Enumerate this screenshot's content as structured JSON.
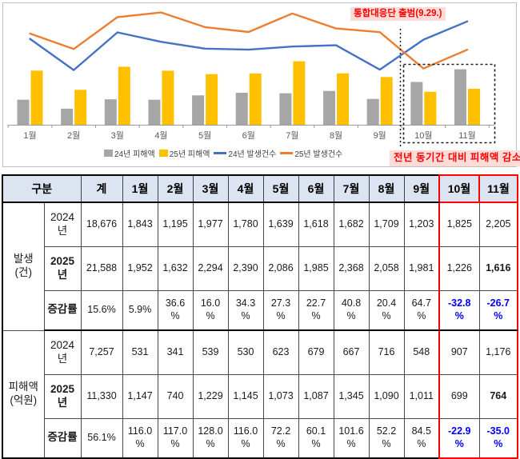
{
  "chart_data": {
    "type": "combo",
    "title": "",
    "categories": [
      "1월",
      "2월",
      "3월",
      "4월",
      "5월",
      "6월",
      "7월",
      "8월",
      "9월",
      "10월",
      "11월"
    ],
    "series": [
      {
        "name": "24년 피해액",
        "type": "bar",
        "color": "#a6a6a6",
        "values": [
          531,
          341,
          539,
          530,
          623,
          679,
          667,
          716,
          548,
          907,
          1176
        ]
      },
      {
        "name": "25년 피해액",
        "type": "bar",
        "color": "#ffc000",
        "values": [
          1147,
          740,
          1229,
          1145,
          1073,
          1087,
          1345,
          1090,
          1011,
          699,
          764
        ]
      },
      {
        "name": "24년 발생건수",
        "type": "line",
        "color": "#4472c4",
        "values": [
          1843,
          1195,
          1977,
          1780,
          1639,
          1618,
          1682,
          1709,
          1203,
          1825,
          2205
        ]
      },
      {
        "name": "25년 발생건수",
        "type": "line",
        "color": "#ed7d31",
        "values": [
          1952,
          1632,
          2294,
          2390,
          2086,
          1985,
          2368,
          2058,
          1981,
          1226,
          1616
        ]
      }
    ],
    "legend_position": "bottom",
    "grid": false,
    "highlight_box_months": [
      "10월",
      "11월"
    ],
    "annotations": [
      {
        "id": "launch",
        "text": "통합대응단 출범(9.29.)",
        "color": "#ff0000"
      },
      {
        "id": "decrease",
        "text": "전년 동기간 대비 피해액 감소",
        "color": "#ff0000"
      }
    ]
  },
  "table": {
    "corner_header": "구분",
    "col_headers": [
      "계",
      "1월",
      "2월",
      "3월",
      "4월",
      "5월",
      "6월",
      "7월",
      "8월",
      "9월",
      "10월",
      "11월"
    ],
    "highlight_col_indexes": [
      10,
      11
    ],
    "groups": [
      {
        "label": "발생\n(건)",
        "rows": [
          {
            "label": "2024\n년",
            "bold_label": false,
            "values": [
              "18,676",
              "1,843",
              "1,195",
              "1,977",
              "1,780",
              "1,639",
              "1,618",
              "1,682",
              "1,709",
              "1,203",
              "1,825",
              "2,205"
            ]
          },
          {
            "label": "2025\n년",
            "bold_label": true,
            "bold_last": true,
            "values": [
              "21,588",
              "1,952",
              "1,632",
              "2,294",
              "2,390",
              "2,086",
              "1,985",
              "2,368",
              "2,058",
              "1,981",
              "1,226",
              "1,616"
            ]
          },
          {
            "label": "증감률",
            "bold_label": true,
            "blue_last_two": true,
            "values": [
              "15.6%",
              "5.9%",
              "36.6%",
              "16.0%",
              "34.3%",
              "27.3%",
              "22.7%",
              "40.8%",
              "20.4%",
              "64.7%",
              "-32.8%",
              "-26.7%"
            ]
          }
        ]
      },
      {
        "label": "피해액\n(억원)",
        "rows": [
          {
            "label": "2024\n년",
            "bold_label": false,
            "values": [
              "7,257",
              "531",
              "341",
              "539",
              "530",
              "623",
              "679",
              "667",
              "716",
              "548",
              "907",
              "1,176"
            ]
          },
          {
            "label": "2025\n년",
            "bold_label": true,
            "bold_last": true,
            "values": [
              "11,330",
              "1,147",
              "740",
              "1,229",
              "1,145",
              "1,073",
              "1,087",
              "1,345",
              "1,090",
              "1,011",
              "699",
              "764"
            ]
          },
          {
            "label": "증감률",
            "bold_label": true,
            "blue_last_two": true,
            "values": [
              "56.1%",
              "116.0%",
              "117.0%",
              "128.0%",
              "116.0%",
              "72.2%",
              "60.1%",
              "101.6%",
              "52.2%",
              "84.5%",
              "-22.9%",
              "-35.0%"
            ]
          }
        ]
      }
    ],
    "colors": {
      "header_bg": "#dce3f1",
      "highlight_border": "#ff0000",
      "negative_value": "#0000f0"
    }
  }
}
